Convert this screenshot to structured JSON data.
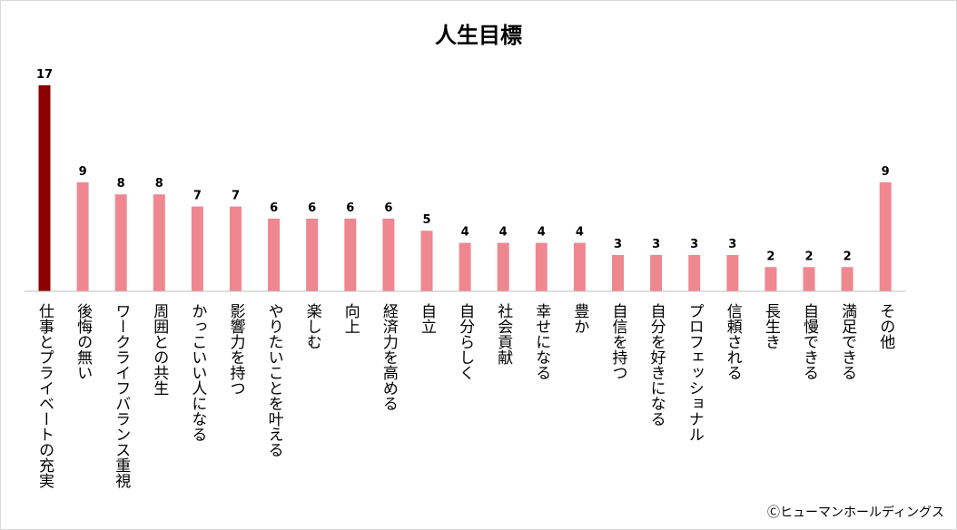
{
  "chart_data": {
    "type": "bar",
    "title": "人生目標",
    "categories": [
      "仕事とプライベートの充実",
      "後悔の無い",
      "ワークライフバランス重視",
      "周囲との共生",
      "かっこいい人になる",
      "影響力を持つ",
      "やりたいことを叶える",
      "楽しむ",
      "向上",
      "経済力を高める",
      "自立",
      "自分らしく",
      "社会貢献",
      "幸せになる",
      "豊か",
      "自信を持つ",
      "自分を好きになる",
      "プロフェッショナル",
      "信頼される",
      "長生き",
      "自慢できる",
      "満足できる",
      "その他"
    ],
    "values": [
      17,
      9,
      8,
      8,
      7,
      7,
      6,
      6,
      6,
      6,
      5,
      4,
      4,
      4,
      4,
      3,
      3,
      3,
      3,
      2,
      2,
      2,
      9
    ],
    "ylim": [
      0,
      18
    ],
    "grid": false,
    "highlight_index": 0,
    "colors": {
      "highlight": "#8B0000",
      "bar": "#EF8791",
      "axis": "#BFBFBF"
    }
  },
  "footer": {
    "copyright": "Ⓒヒューマンホールディングス"
  }
}
